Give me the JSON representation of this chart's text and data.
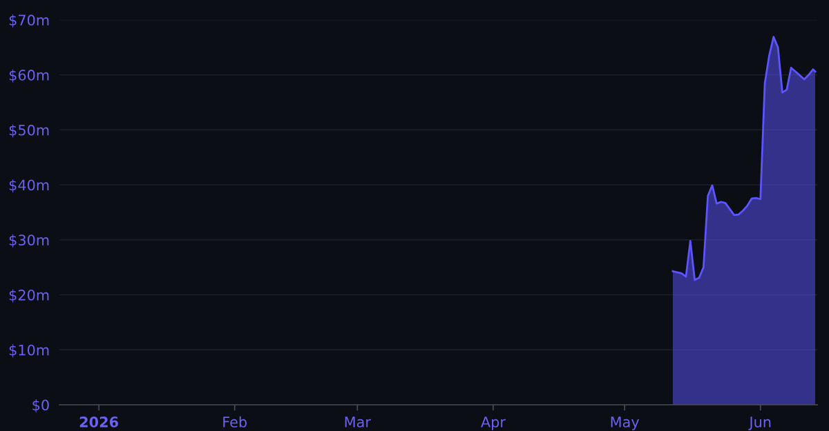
{
  "chart_data": {
    "type": "area",
    "x": [
      "2026-05-12",
      "2026-05-13",
      "2026-05-14",
      "2026-05-15",
      "2026-05-16",
      "2026-05-17",
      "2026-05-18",
      "2026-05-19",
      "2026-05-20",
      "2026-05-21",
      "2026-05-22",
      "2026-05-23",
      "2026-05-24",
      "2026-05-25",
      "2026-05-26",
      "2026-05-27",
      "2026-05-28",
      "2026-05-29",
      "2026-05-30",
      "2026-05-31",
      "2026-06-01",
      "2026-06-02",
      "2026-06-03",
      "2026-06-04",
      "2026-06-05",
      "2026-06-06",
      "2026-06-07",
      "2026-06-08",
      "2026-06-09",
      "2026-06-10",
      "2026-06-11",
      "2026-06-12",
      "2026-06-13",
      "2026-06-13T12:00"
    ],
    "series": [
      {
        "color": "#5b54ff",
        "values": [
          24.3,
          24.1,
          23.9,
          23.3,
          29.8,
          22.7,
          23.1,
          25.0,
          38.0,
          39.9,
          36.6,
          36.9,
          36.7,
          35.6,
          34.5,
          34.6,
          35.3,
          36.2,
          37.5,
          37.6,
          37.4,
          58.5,
          63.5,
          66.9,
          65.0,
          56.8,
          57.3,
          61.3,
          60.6,
          59.9,
          59.2,
          60.0,
          61.0,
          60.6
        ]
      }
    ],
    "xlim": [
      "2025-12-23",
      "2026-06-14"
    ],
    "ylim": [
      0,
      70
    ],
    "xticks": [
      {
        "value": "2026-01-01",
        "label": "2026"
      },
      {
        "value": "2026-02-01",
        "label": "Feb"
      },
      {
        "value": "2026-03-01",
        "label": "Mar"
      },
      {
        "value": "2026-04-01",
        "label": "Apr"
      },
      {
        "value": "2026-05-01",
        "label": "May"
      },
      {
        "value": "2026-06-01",
        "label": "Jun"
      }
    ],
    "yticks": [
      {
        "value": 0,
        "label": "$0"
      },
      {
        "value": 10,
        "label": "$10m"
      },
      {
        "value": 20,
        "label": "$20m"
      },
      {
        "value": 30,
        "label": "$30m"
      },
      {
        "value": 40,
        "label": "$40m"
      },
      {
        "value": 50,
        "label": "$50m"
      },
      {
        "value": 60,
        "label": "$60m"
      },
      {
        "value": 70,
        "label": "$70m"
      }
    ],
    "grid": "y"
  }
}
